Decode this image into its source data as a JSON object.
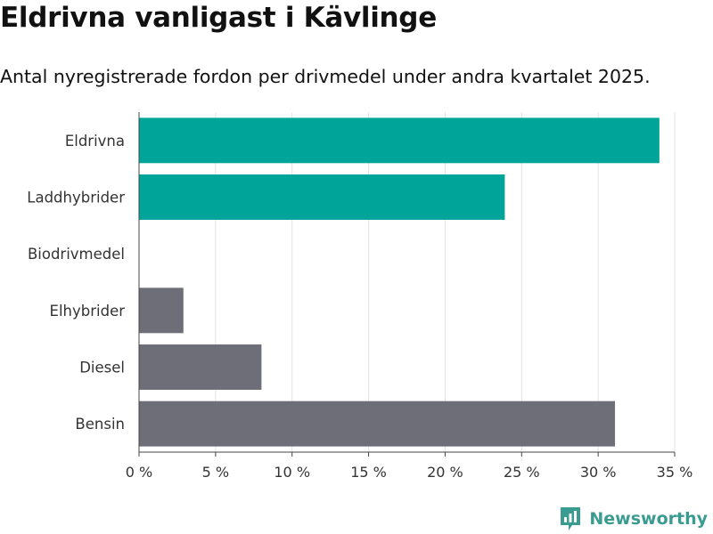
{
  "header": {
    "title": "Eldrivna vanligast i Kävlinge",
    "subtitle": "Antal nyregistrerade fordon per drivmedel under andra kvartalet 2025."
  },
  "brand": {
    "name": "Newsworthy",
    "icon": "newsworthy-logo-icon",
    "color": "#3a9b91"
  },
  "chart_data": {
    "type": "bar",
    "orientation": "horizontal",
    "categories": [
      "Eldrivna",
      "Laddhybrider",
      "Biodrivmedel",
      "Elhybrider",
      "Diesel",
      "Bensin"
    ],
    "values": [
      34.0,
      23.9,
      0,
      2.9,
      8.0,
      31.1
    ],
    "colors": [
      "#00a499",
      "#00a499",
      "#6e6e78",
      "#6e6e78",
      "#6e6e78",
      "#6e6e78"
    ],
    "xlim": [
      0,
      35
    ],
    "xticks": [
      0,
      5,
      10,
      15,
      20,
      25,
      30,
      35
    ],
    "tick_labels": [
      "0 %",
      "5 %",
      "10 %",
      "15 %",
      "20 %",
      "25 %",
      "30 %",
      "35 %"
    ],
    "grid": true,
    "legend": "none"
  }
}
